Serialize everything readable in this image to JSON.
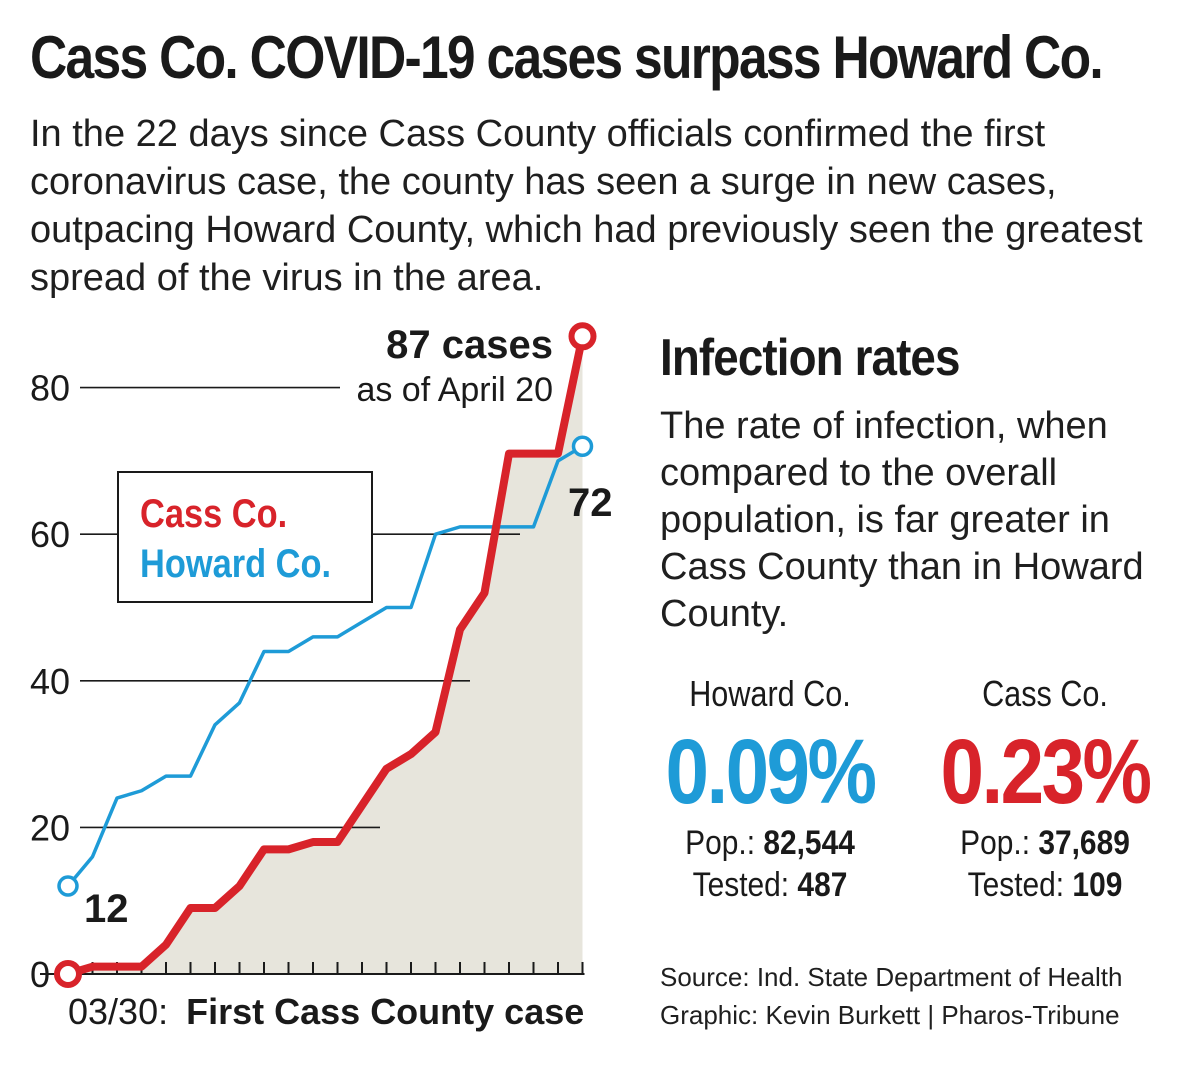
{
  "header": {
    "title": "Cass Co. COVID-19 cases surpass Howard Co.",
    "intro": "In the 22 days since Cass County officials confirmed the first coronavirus case, the county has seen a surge in new cases, outpacing Howard County, which had previously seen the greatest spread of the virus in the area."
  },
  "colors": {
    "cass": "#d8232a",
    "howard": "#1e9bd7",
    "area_fill": "#e7e5dc",
    "text": "#1a1a1a"
  },
  "chart_data": {
    "type": "line",
    "title": "",
    "xlabel_prefix": "03/30:",
    "xlabel": "First Cass County case",
    "ylabel": "",
    "ylim": [
      0,
      87
    ],
    "yticks": [
      0,
      20,
      40,
      60,
      80
    ],
    "x": [
      0,
      1,
      2,
      3,
      4,
      5,
      6,
      7,
      8,
      9,
      10,
      11,
      12,
      13,
      14,
      15,
      16,
      17,
      18,
      19,
      20,
      21
    ],
    "grid": true,
    "legend": {
      "position": "upper-left",
      "entries": [
        "Cass Co.",
        "Howard Co."
      ]
    },
    "series": [
      {
        "name": "Cass Co.",
        "color": "#d8232a",
        "values": [
          0,
          1,
          1,
          1,
          4,
          9,
          9,
          12,
          17,
          17,
          18,
          18,
          23,
          28,
          30,
          33,
          47,
          52,
          71,
          71,
          71,
          87
        ]
      },
      {
        "name": "Howard Co.",
        "color": "#1e9bd7",
        "values": [
          12,
          16,
          24,
          25,
          27,
          27,
          34,
          37,
          44,
          44,
          46,
          46,
          48,
          50,
          50,
          60,
          61,
          61,
          61,
          61,
          70,
          72
        ]
      }
    ],
    "annotations": {
      "cass_end_bold": "87 cases",
      "cass_end_sub": "as of April 20",
      "howard_end": "72",
      "howard_start": "12"
    }
  },
  "sidebar": {
    "title": "Infection rates",
    "text": "The rate of infection, when compared to the overall population, is far greater in Cass County than in Howard County.",
    "howard": {
      "label": "Howard Co.",
      "rate": "0.09%",
      "pop_label": "Pop.:",
      "pop": "82,544",
      "tested_label": "Tested:",
      "tested": "487"
    },
    "cass": {
      "label": "Cass Co.",
      "rate": "0.23%",
      "pop_label": "Pop.:",
      "pop": "37,689",
      "tested_label": "Tested:",
      "tested": "109"
    }
  },
  "credits": {
    "source": "Source: Ind. State Department of Health",
    "graphic": "Graphic: Kevin Burkett | Pharos-Tribune"
  }
}
